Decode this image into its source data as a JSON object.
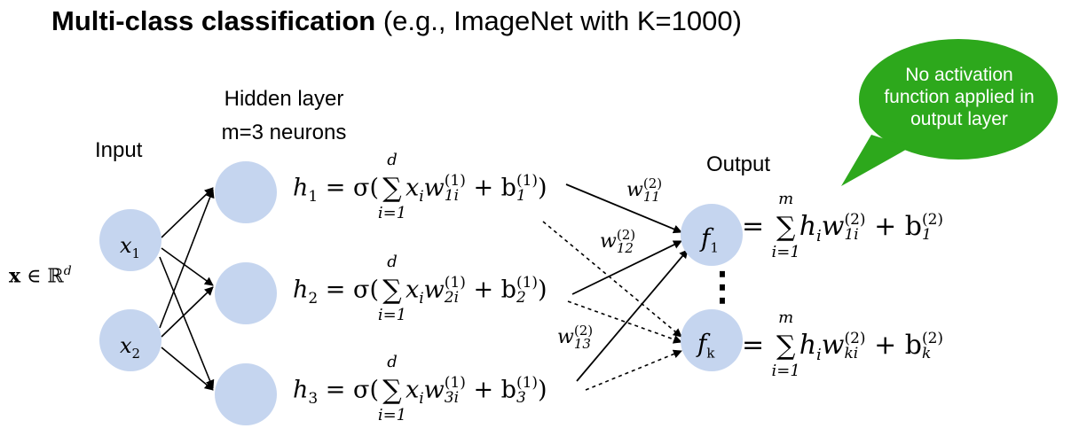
{
  "title": {
    "bold": "Multi-class classification",
    "rest": " (e.g., ImageNet with K=1000)"
  },
  "labels": {
    "hidden_layer": "Hidden layer",
    "m_neurons": "m=3 neurons",
    "input": "Input",
    "output": "Output"
  },
  "input_space": {
    "x": "x",
    "in": " ∈ ℝ",
    "d": "d"
  },
  "bubble": {
    "text": "No activation function applied in output layer",
    "color": "#2da81c"
  },
  "nodes": {
    "color": "#c5d5ef",
    "inputs": [
      {
        "sym": "x",
        "sub": "1"
      },
      {
        "sym": "x",
        "sub": "2"
      }
    ],
    "outputs": [
      {
        "sym": "f",
        "sub": "1"
      },
      {
        "sym": "f",
        "sub": "k"
      }
    ]
  },
  "hidden_equations": [
    {
      "h": "h",
      "hsub": "1",
      "wsub": "1i",
      "bsub": "1"
    },
    {
      "h": "h",
      "hsub": "2",
      "wsub": "2i",
      "bsub": "2"
    },
    {
      "h": "h",
      "hsub": "3",
      "wsub": "3i",
      "bsub": "3"
    }
  ],
  "output_equations": [
    {
      "wsub": "1i",
      "bsub": "1"
    },
    {
      "wsub": "ki",
      "bsub": "k"
    }
  ],
  "eq_parts": {
    "equals_sigma": " = σ(",
    "sum_top": "d",
    "sum_bottom": "i=1",
    "xi": "x",
    "xi_sub": "i",
    "w": "w",
    "sup1": "(1)",
    "sup2": "(2)",
    "plus_b": " + b",
    "close": ")",
    "out_sum_top": "m",
    "hi": "h",
    "hi_sub": "i",
    "equals": " = "
  },
  "weight_labels": [
    {
      "sub": "11",
      "sup": "(2)"
    },
    {
      "sub": "12",
      "sup": "(2)"
    },
    {
      "sub": "13",
      "sup": "(2)"
    }
  ],
  "ellipsis": "⋮"
}
